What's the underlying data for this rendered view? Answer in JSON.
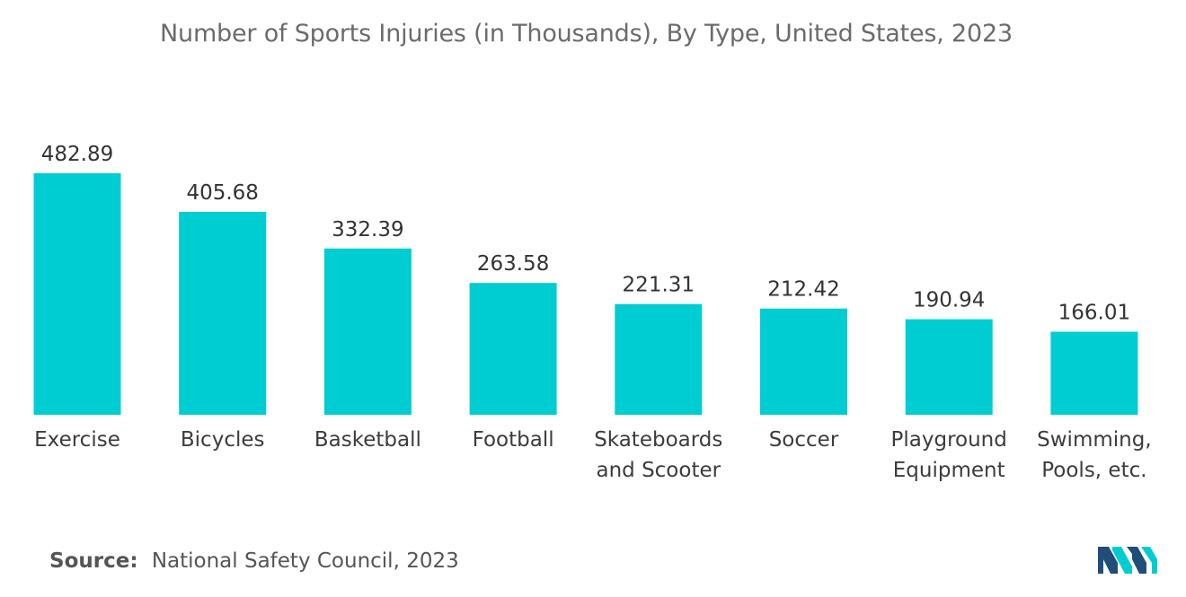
{
  "chart_data": {
    "type": "bar",
    "title": "Number of Sports Injuries (in Thousands), By Type, United States, 2023",
    "categories": [
      [
        "Exercise"
      ],
      [
        "Bicycles"
      ],
      [
        "Basketball"
      ],
      [
        "Football"
      ],
      [
        "Skateboards",
        "and Scooter"
      ],
      [
        "Soccer"
      ],
      [
        "Playground",
        "Equipment"
      ],
      [
        "Swimming,",
        "Pools, etc."
      ]
    ],
    "values": [
      482.89,
      405.68,
      332.39,
      263.58,
      221.31,
      212.42,
      190.94,
      166.01
    ],
    "value_labels": [
      "482.89",
      "405.68",
      "332.39",
      "263.58",
      "221.31",
      "212.42",
      "190.94",
      "166.01"
    ],
    "xlabel": "",
    "ylabel": "",
    "ylim": [
      0,
      482.89
    ],
    "grid": false,
    "legend": "none",
    "bar_color": "#00cdd1"
  },
  "source": {
    "label": "Source:",
    "text": "National Safety Council, 2023"
  },
  "logo": {
    "icon": "mordor-intelligence-logo-icon",
    "colors": [
      "#1f4e79",
      "#00cdd1"
    ]
  }
}
